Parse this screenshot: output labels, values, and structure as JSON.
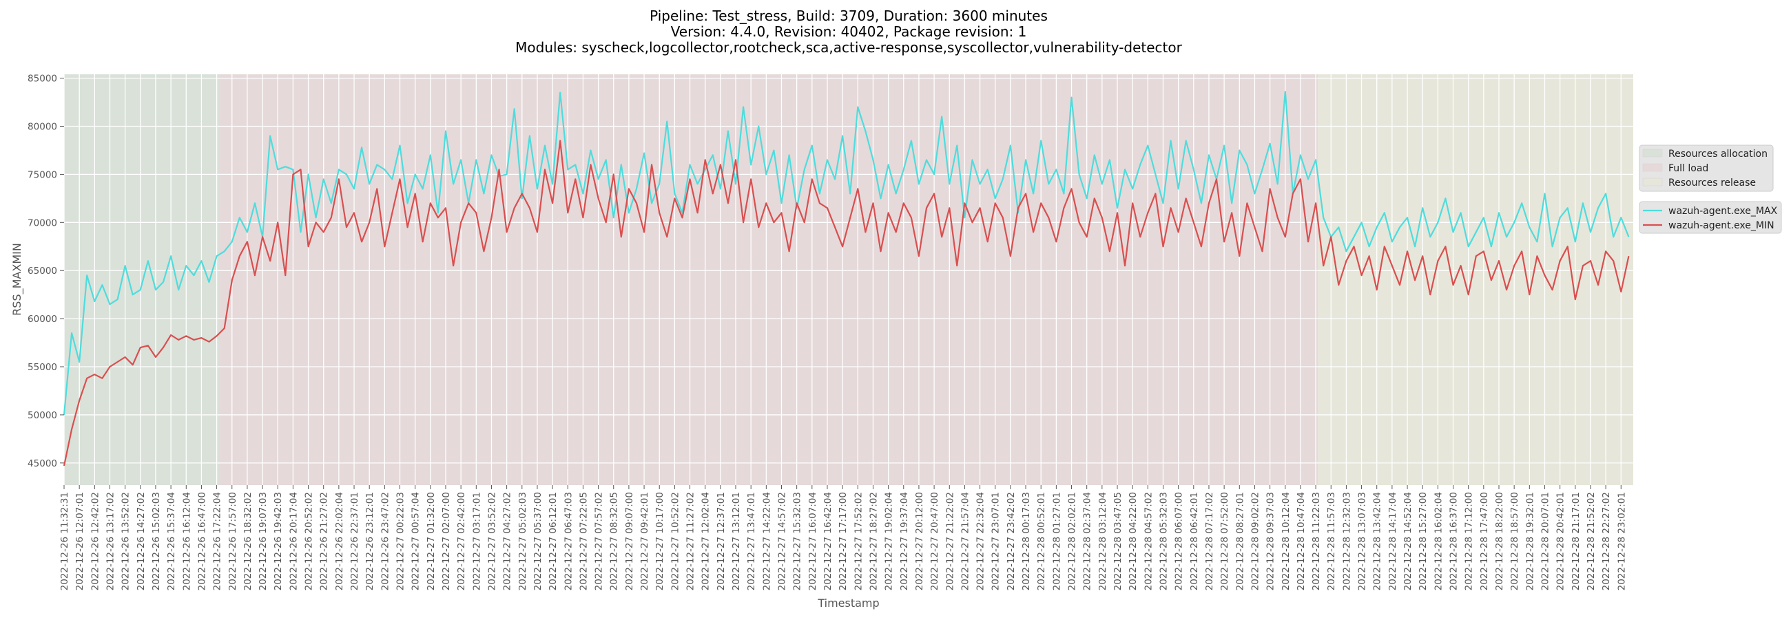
{
  "chart_data": {
    "type": "line",
    "title_lines": [
      "Pipeline: Test_stress, Build: 3709, Duration: 3600 minutes",
      "Version: 4.4.0, Revision: 40402, Package revision: 1",
      "Modules: syscheck,logcollector,rootcheck,sca,active-response,syscollector,vulnerability-detector"
    ],
    "xlabel": "Timestamp",
    "ylabel": "RSS_MAXMIN",
    "ylim": [
      42700,
      85400
    ],
    "yticks": [
      45000,
      50000,
      55000,
      60000,
      65000,
      70000,
      75000,
      80000,
      85000
    ],
    "x_units": "minutes since 2022-12-26 11:32:31",
    "xlim": [
      0,
      3598
    ],
    "x_step_minutes": 17.5,
    "xtick_step_minutes": 35,
    "grid": true,
    "legend_placement": "right",
    "xtick_labels": [
      "2022-12-26 11:32:31",
      "2022-12-26 12:07:01",
      "2022-12-26 12:42:02",
      "2022-12-26 13:17:02",
      "2022-12-26 13:52:02",
      "2022-12-26 14:27:02",
      "2022-12-26 15:02:03",
      "2022-12-26 15:37:04",
      "2022-12-26 16:12:04",
      "2022-12-26 16:47:00",
      "2022-12-26 17:22:04",
      "2022-12-26 17:57:00",
      "2022-12-26 18:32:02",
      "2022-12-26 19:07:03",
      "2022-12-26 19:42:03",
      "2022-12-26 20:17:04",
      "2022-12-26 20:52:02",
      "2022-12-26 21:27:02",
      "2022-12-26 22:02:04",
      "2022-12-26 22:37:01",
      "2022-12-26 23:12:01",
      "2022-12-26 23:47:02",
      "2022-12-27 00:22:03",
      "2022-12-27 00:57:04",
      "2022-12-27 01:32:00",
      "2022-12-27 02:07:00",
      "2022-12-27 02:42:00",
      "2022-12-27 03:17:01",
      "2022-12-27 03:52:02",
      "2022-12-27 04:27:02",
      "2022-12-27 05:02:03",
      "2022-12-27 05:37:00",
      "2022-12-27 06:12:01",
      "2022-12-27 06:47:03",
      "2022-12-27 07:22:05",
      "2022-12-27 07:57:02",
      "2022-12-27 08:32:05",
      "2022-12-27 09:07:00",
      "2022-12-27 09:42:01",
      "2022-12-27 10:17:00",
      "2022-12-27 10:52:02",
      "2022-12-27 11:27:02",
      "2022-12-27 12:02:04",
      "2022-12-27 12:37:01",
      "2022-12-27 13:12:01",
      "2022-12-27 13:47:01",
      "2022-12-27 14:22:04",
      "2022-12-27 14:57:02",
      "2022-12-27 15:32:03",
      "2022-12-27 16:07:04",
      "2022-12-27 16:42:04",
      "2022-12-27 17:17:00",
      "2022-12-27 17:52:02",
      "2022-12-27 18:27:02",
      "2022-12-27 19:02:04",
      "2022-12-27 19:37:04",
      "2022-12-27 20:12:00",
      "2022-12-27 20:47:00",
      "2022-12-27 21:22:02",
      "2022-12-27 21:57:04",
      "2022-12-27 22:32:04",
      "2022-12-27 23:07:01",
      "2022-12-27 23:42:02",
      "2022-12-28 00:17:03",
      "2022-12-28 00:52:01",
      "2022-12-28 01:27:01",
      "2022-12-28 02:02:01",
      "2022-12-28 02:37:04",
      "2022-12-28 03:12:04",
      "2022-12-28 03:47:05",
      "2022-12-28 04:22:00",
      "2022-12-28 04:57:02",
      "2022-12-28 05:32:03",
      "2022-12-28 06:07:00",
      "2022-12-28 06:42:01",
      "2022-12-28 07:17:02",
      "2022-12-28 07:52:00",
      "2022-12-28 08:27:01",
      "2022-12-28 09:02:02",
      "2022-12-28 09:37:03",
      "2022-12-28 10:12:04",
      "2022-12-28 10:47:04",
      "2022-12-28 11:22:03",
      "2022-12-28 11:57:03",
      "2022-12-28 12:32:03",
      "2022-12-28 13:07:03",
      "2022-12-28 13:42:04",
      "2022-12-28 14:17:04",
      "2022-12-28 14:52:04",
      "2022-12-28 15:27:00",
      "2022-12-28 16:02:04",
      "2022-12-28 16:37:00",
      "2022-12-28 17:12:00",
      "2022-12-28 17:47:00",
      "2022-12-28 18:22:00",
      "2022-12-28 18:57:00",
      "2022-12-28 19:32:01",
      "2022-12-28 20:07:01",
      "2022-12-28 20:42:01",
      "2022-12-28 21:17:01",
      "2022-12-28 21:52:02",
      "2022-12-28 22:27:02",
      "2022-12-28 23:02:01"
    ],
    "regions": [
      {
        "name": "Resources allocation",
        "start": 0,
        "end": 357,
        "color": "#d9e1d9"
      },
      {
        "name": "Full load",
        "start": 357,
        "end": 2875,
        "color": "#e5d9da"
      },
      {
        "name": "Resources release",
        "start": 2875,
        "end": 3598,
        "color": "#e6e6da"
      }
    ],
    "series": [
      {
        "name": "wazuh-agent.exe_MAX",
        "color": "#4fdcdc",
        "values": [
          50000,
          58500,
          55500,
          64500,
          61800,
          63500,
          61500,
          62000,
          65500,
          62500,
          63000,
          66000,
          63000,
          63800,
          66500,
          63000,
          65500,
          64500,
          66000,
          63800,
          66500,
          67000,
          68000,
          70500,
          69000,
          72000,
          68500,
          79000,
          75500,
          75800,
          75500,
          69000,
          75000,
          70500,
          74500,
          72000,
          75500,
          75000,
          73500,
          77800,
          74000,
          76000,
          75500,
          74500,
          78000,
          72000,
          75000,
          73500,
          77000,
          71000,
          79500,
          74000,
          76500,
          72000,
          76500,
          73000,
          77000,
          74800,
          75000,
          81800,
          72500,
          79000,
          73500,
          78000,
          74000,
          83500,
          75500,
          76000,
          73000,
          77500,
          74500,
          76500,
          70500,
          76000,
          71000,
          73500,
          77200,
          72000,
          74000,
          80500,
          73000,
          71000,
          76000,
          74000,
          75500,
          77000,
          73500,
          79500,
          74000,
          82000,
          76000,
          80000,
          75000,
          77500,
          72000,
          77000,
          71500,
          75500,
          78000,
          73000,
          76500,
          74500,
          79000,
          73000,
          82000,
          79500,
          76500,
          72500,
          76000,
          73000,
          75500,
          78500,
          74000,
          76500,
          75000,
          81000,
          74000,
          78000,
          70500,
          76500,
          74000,
          75500,
          72500,
          74500,
          78000,
          71000,
          76500,
          73000,
          78500,
          74000,
          75500,
          73000,
          83000,
          75000,
          72500,
          77000,
          74000,
          76500,
          71500,
          75500,
          73500,
          76000,
          78000,
          75000,
          72000,
          78500,
          73500,
          78500,
          75500,
          72000,
          77000,
          74500,
          78000,
          72000,
          77500,
          76000,
          73000,
          75500,
          78200,
          74000,
          83600,
          73000,
          77000,
          74500,
          76500,
          70500,
          68500,
          69500,
          67000,
          68500,
          70000,
          67500,
          69500,
          71000,
          68000,
          69500,
          70500,
          67500,
          71500,
          68500,
          70000,
          72500,
          69000,
          71000,
          67500,
          69000,
          70500,
          67500,
          71000,
          68500,
          70000,
          72000,
          69500,
          68000,
          73000,
          67500,
          70500,
          71500,
          68000,
          72000,
          69000,
          71500,
          73000,
          68500,
          70500,
          68500
        ]
      },
      {
        "name": "wazuh-agent.exe_MIN",
        "color": "#d94f4f",
        "values": [
          44700,
          48500,
          51500,
          53800,
          54200,
          53800,
          55000,
          55500,
          56000,
          55200,
          57000,
          57200,
          56000,
          57000,
          58300,
          57800,
          58200,
          57800,
          58000,
          57600,
          58200,
          59000,
          64000,
          66500,
          68000,
          64500,
          68500,
          66000,
          70000,
          64500,
          75000,
          75500,
          67500,
          70000,
          69000,
          70500,
          74500,
          69500,
          71000,
          68000,
          70000,
          73500,
          67500,
          71000,
          74500,
          69500,
          73000,
          68000,
          72000,
          70500,
          71500,
          65500,
          70000,
          72000,
          71000,
          67000,
          70500,
          75500,
          69000,
          71500,
          73000,
          71500,
          69000,
          75500,
          72000,
          78500,
          71000,
          74500,
          70500,
          76000,
          72500,
          70000,
          75000,
          68500,
          73500,
          72000,
          69000,
          76000,
          71000,
          68500,
          72500,
          70500,
          74500,
          71000,
          76500,
          73000,
          76000,
          72000,
          76500,
          70000,
          74500,
          69500,
          72000,
          70000,
          71000,
          67000,
          72000,
          70000,
          74500,
          72000,
          71500,
          69500,
          67500,
          70500,
          73500,
          69000,
          72000,
          67000,
          71000,
          69000,
          72000,
          70500,
          66500,
          71500,
          73000,
          68500,
          71500,
          65500,
          72000,
          70000,
          71500,
          68000,
          72000,
          70500,
          66500,
          71500,
          73000,
          69000,
          72000,
          70500,
          68000,
          71500,
          73500,
          70000,
          68500,
          72500,
          70500,
          67000,
          71000,
          65500,
          72000,
          68500,
          71000,
          73000,
          67500,
          71500,
          69000,
          72500,
          70000,
          67500,
          72000,
          74500,
          68000,
          71000,
          66500,
          72000,
          69500,
          67000,
          73500,
          70500,
          68500,
          73000,
          74500,
          68000,
          72000,
          65500,
          68500,
          63500,
          66000,
          67500,
          64500,
          66500,
          63000,
          67500,
          65500,
          63500,
          67000,
          64000,
          66500,
          62500,
          66000,
          67500,
          63500,
          65500,
          62500,
          66500,
          67000,
          64000,
          66000,
          63000,
          65500,
          67000,
          62500,
          66500,
          64500,
          63000,
          66000,
          67500,
          62000,
          65500,
          66000,
          63500,
          67000,
          66000,
          62800,
          66500
        ]
      }
    ]
  }
}
